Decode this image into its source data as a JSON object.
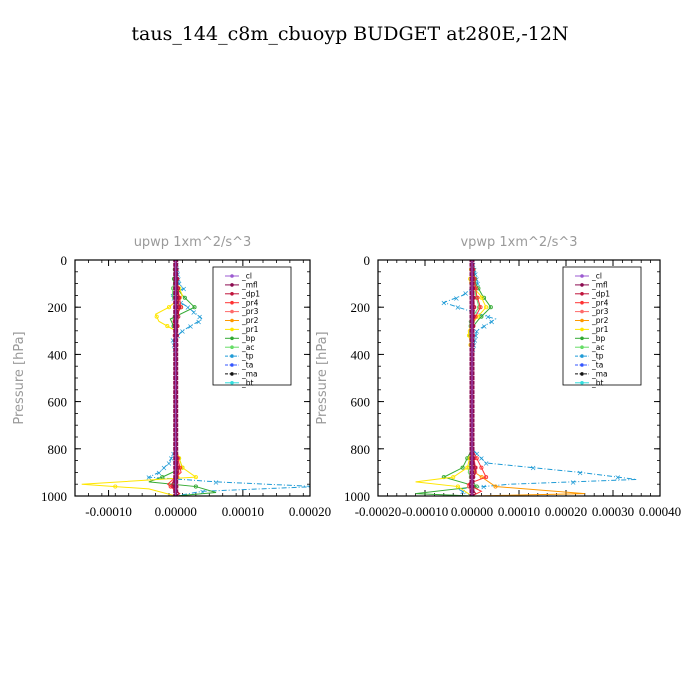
{
  "figure_title": "taus_144_c8m_cbuoyp  BUDGET at280E,-12N",
  "chart_data": [
    {
      "type": "line",
      "title": "upwp   1xm^2/s^3",
      "ylabel": "Pressure  [hPa]",
      "xlim": [
        -0.00015,
        0.0002
      ],
      "ylim": [
        1000,
        0
      ],
      "xticks": [
        -0.0001,
        0.0,
        0.0001,
        0.0002
      ],
      "xtick_labels": [
        "-0.00010",
        "0.00000",
        "0.00010",
        "0.00020"
      ],
      "yticks": [
        0,
        200,
        400,
        600,
        800,
        1000
      ],
      "ytick_labels": [
        "0",
        "200",
        "400",
        "600",
        "800",
        "1000"
      ],
      "legend_position": "top-right",
      "series": [
        {
          "name": "_cl",
          "color": "#9b59d0",
          "y": [
            0,
            1000
          ],
          "x": [
            0,
            0
          ]
        },
        {
          "name": "_mfl",
          "color": "#8b0a50",
          "y": [
            0,
            1000
          ],
          "x": [
            0,
            0
          ]
        },
        {
          "name": "_dp1",
          "color": "#c0143c",
          "y": [
            0,
            100,
            200,
            300,
            400,
            600,
            800,
            900,
            950,
            990,
            1000
          ],
          "x": [
            0,
            3e-06,
            5e-06,
            2e-06,
            0,
            0,
            0,
            4e-06,
            -6e-06,
            5e-06,
            0
          ]
        },
        {
          "name": "_pr4",
          "color": "#ff3333",
          "y": [
            0,
            100,
            200,
            260,
            300,
            400,
            800,
            900,
            950,
            990,
            1000
          ],
          "x": [
            0,
            2e-06,
            8e-06,
            -4e-06,
            2e-06,
            0,
            0,
            8e-06,
            -1.2e-05,
            6e-06,
            0
          ]
        },
        {
          "name": "_pr3",
          "color": "#ff6a6a",
          "y": [
            0,
            100,
            200,
            300,
            400,
            800,
            900,
            950,
            1000
          ],
          "x": [
            0,
            2e-06,
            4e-06,
            -2e-06,
            0,
            0,
            5e-06,
            -6e-06,
            0
          ]
        },
        {
          "name": "_pr2",
          "color": "#ff9900",
          "y": [
            0,
            200,
            400,
            800,
            900,
            1000
          ],
          "x": [
            0,
            2e-06,
            0,
            0,
            3e-06,
            0
          ]
        },
        {
          "name": "_pr1",
          "color": "#ffe600",
          "y": [
            0,
            100,
            150,
            200,
            230,
            260,
            300,
            400,
            800,
            880,
            920,
            950,
            970,
            1000
          ],
          "x": [
            0,
            2e-06,
            1e-05,
            -1e-05,
            -3e-05,
            -2.5e-05,
            0,
            0,
            0,
            1e-05,
            3e-05,
            -0.00014,
            -4e-05,
            0
          ]
        },
        {
          "name": "_bp",
          "color": "#33aa33",
          "y": [
            0,
            100,
            150,
            200,
            250,
            300,
            400,
            800,
            880,
            920,
            940,
            960,
            985,
            1000
          ],
          "x": [
            0,
            -3e-06,
            1e-05,
            2.8e-05,
            -8e-06,
            0,
            0,
            0,
            1e-05,
            -2e-05,
            -4e-05,
            3e-05,
            6e-05,
            0
          ]
        },
        {
          "name": "_ac",
          "color": "#66dd66",
          "y": [
            0,
            150,
            200,
            250,
            300,
            800,
            900,
            950,
            1000
          ],
          "x": [
            0,
            -5e-06,
            8e-06,
            -4e-06,
            0,
            0,
            5e-06,
            -5e-06,
            0
          ]
        },
        {
          "name": "_tp",
          "color": "#1f9bd6",
          "y": [
            0,
            100,
            120,
            150,
            200,
            250,
            300,
            340,
            400,
            800,
            860,
            900,
            920,
            940,
            960,
            980,
            1000
          ],
          "x": [
            0,
            5e-06,
            1.2e-05,
            -8e-06,
            1.8e-05,
            4e-05,
            1e-05,
            -4e-06,
            0,
            0,
            -1e-05,
            -2.5e-05,
            -4e-05,
            6e-05,
            0.00021,
            4e-05,
            0
          ]
        },
        {
          "name": "_ta",
          "color": "#3355ff",
          "y": [
            0,
            1000
          ],
          "x": [
            0,
            0
          ]
        },
        {
          "name": "_ma",
          "color": "#111111",
          "y": [
            0,
            1000
          ],
          "x": [
            0,
            0
          ]
        },
        {
          "name": "_bt",
          "color": "#33dddd",
          "y": [
            0,
            1000
          ],
          "x": [
            0,
            0
          ]
        }
      ]
    },
    {
      "type": "line",
      "title": "vpwp   1xm^2/s^3",
      "ylabel": "Pressure  [hPa]",
      "xlim": [
        -0.0002,
        0.0004
      ],
      "ylim": [
        1000,
        0
      ],
      "xticks": [
        -0.0002,
        -0.0001,
        0.0,
        0.0001,
        0.0002,
        0.0003,
        0.0004
      ],
      "xtick_labels": [
        "-0.00020",
        "-0.00010",
        "0.00000",
        "0.00010",
        "0.00020",
        "0.00030",
        "0.00040"
      ],
      "yticks": [
        0,
        200,
        400,
        600,
        800,
        1000
      ],
      "ytick_labels": [
        "0",
        "200",
        "400",
        "600",
        "800",
        "1000"
      ],
      "legend_position": "top-right",
      "series": [
        {
          "name": "_cl",
          "color": "#9b59d0",
          "y": [
            0,
            1000
          ],
          "x": [
            0,
            0
          ]
        },
        {
          "name": "_mfl",
          "color": "#8b0a50",
          "y": [
            0,
            1000
          ],
          "x": [
            0,
            0
          ]
        },
        {
          "name": "_dp1",
          "color": "#c0143c",
          "y": [
            0,
            200,
            400,
            800,
            900,
            950,
            990,
            1000
          ],
          "x": [
            0,
            4e-06,
            0,
            0,
            8e-06,
            -6e-06,
            8e-06,
            0
          ]
        },
        {
          "name": "_pr4",
          "color": "#ff3333",
          "y": [
            0,
            150,
            200,
            250,
            300,
            400,
            800,
            880,
            920,
            950,
            980,
            1000
          ],
          "x": [
            0,
            1e-05,
            1.8e-05,
            5e-06,
            0,
            0,
            0,
            2e-05,
            3e-05,
            -1e-05,
            2e-05,
            0
          ]
        },
        {
          "name": "_pr3",
          "color": "#ff6a6a",
          "y": [
            0,
            200,
            400,
            800,
            900,
            950,
            1000
          ],
          "x": [
            0,
            5e-06,
            0,
            0,
            1e-05,
            -8e-06,
            0
          ]
        },
        {
          "name": "_pr2",
          "color": "#ff9900",
          "y": [
            0,
            800,
            900,
            960,
            990,
            1000
          ],
          "x": [
            0,
            0,
            6e-06,
            5e-05,
            0.00024,
            0
          ]
        },
        {
          "name": "_pr1",
          "color": "#ffe600",
          "y": [
            0,
            100,
            150,
            200,
            250,
            300,
            400,
            800,
            880,
            920,
            940,
            960,
            1000
          ],
          "x": [
            0,
            -5e-06,
            1.8e-05,
            3e-05,
            8e-06,
            -8e-06,
            0,
            0,
            -1e-05,
            -4e-05,
            -0.00012,
            -3e-05,
            0
          ]
        },
        {
          "name": "_bp",
          "color": "#33aa33",
          "y": [
            0,
            100,
            150,
            200,
            250,
            300,
            400,
            800,
            880,
            920,
            960,
            990,
            1000
          ],
          "x": [
            0,
            8e-06,
            2.2e-05,
            4e-05,
            1.5e-05,
            -5e-06,
            0,
            0,
            -2e-05,
            -6e-05,
            1e-05,
            -0.00012,
            0
          ]
        },
        {
          "name": "_ac",
          "color": "#66dd66",
          "y": [
            0,
            150,
            200,
            260,
            300,
            800,
            900,
            950,
            1000
          ],
          "x": [
            0,
            8e-06,
            1.5e-05,
            -6e-06,
            0,
            0,
            -8e-06,
            6e-06,
            0
          ]
        },
        {
          "name": "_tp",
          "color": "#1f9bd6",
          "y": [
            0,
            100,
            150,
            180,
            200,
            250,
            300,
            400,
            800,
            860,
            900,
            930,
            950,
            970,
            1000
          ],
          "x": [
            0,
            1.2e-05,
            -2e-05,
            -6e-05,
            -3e-05,
            5e-05,
            1e-05,
            0,
            0,
            3e-05,
            0.00023,
            0.00035,
            8e-05,
            -3e-05,
            0
          ]
        },
        {
          "name": "_ta",
          "color": "#3355ff",
          "y": [
            0,
            1000
          ],
          "x": [
            0,
            0
          ]
        },
        {
          "name": "_ma",
          "color": "#111111",
          "y": [
            0,
            1000
          ],
          "x": [
            0,
            0
          ]
        },
        {
          "name": "_bt",
          "color": "#33dddd",
          "y": [
            0,
            1000
          ],
          "x": [
            0,
            0
          ]
        }
      ]
    }
  ]
}
